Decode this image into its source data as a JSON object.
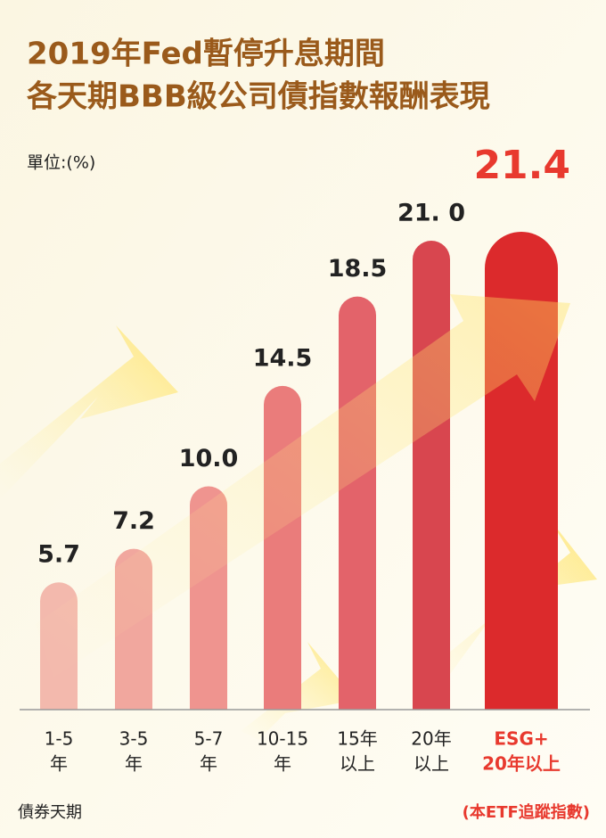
{
  "chart_data": {
    "type": "bar",
    "title": [
      "2019年Fed暫停升息期間",
      "各天期BBB級公司債指數報酬表現"
    ],
    "unit_label": "單位:(%)",
    "x_label": "債券天期",
    "note": "(本ETF追蹤指數)",
    "categories": [
      [
        "1-5",
        "年"
      ],
      [
        "3-5",
        "年"
      ],
      [
        "5-7",
        "年"
      ],
      [
        "10-15",
        "年"
      ],
      [
        "15年",
        "以上"
      ],
      [
        "20年",
        "以上"
      ],
      [
        "ESG+",
        "20年以上"
      ]
    ],
    "values": [
      5.7,
      7.2,
      10.0,
      14.5,
      18.5,
      21.0,
      21.4
    ],
    "value_labels": [
      "5.7",
      "7.2",
      "10.0",
      "14.5",
      "18.5",
      "21. 0",
      "21.4"
    ],
    "colors": [
      "#f3b9ad",
      "#f1a79e",
      "#ef948f",
      "#ea7c7b",
      "#e3636a",
      "#d8464f",
      "#dc2a2c"
    ],
    "highlight_color": "#e8392e"
  }
}
